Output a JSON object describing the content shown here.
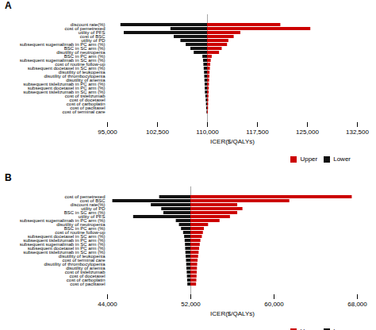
{
  "chart_data": [
    {
      "type": "bar",
      "orientation": "horizontal",
      "title": "A",
      "x_label": "ICER($/QALYs)",
      "base": 110000,
      "xlim": [
        95000,
        132500
      ],
      "xticks": [
        {
          "value": 95000,
          "label": "95,000"
        },
        {
          "value": 102500,
          "label": "102,500"
        },
        {
          "value": 110000,
          "label": "110,000"
        },
        {
          "value": 117500,
          "label": "117,500"
        },
        {
          "value": 125000,
          "label": "125,000"
        },
        {
          "value": 132500,
          "label": "132,500"
        }
      ],
      "categories": [
        "discount rate(%)",
        "cost of pemetrexed",
        "utility of PFS",
        "cost of BSC",
        "utility of PD",
        "subsequent sugemalimab in PC arm (%)",
        "BSC in SC arm (%)",
        "disutility of neutropenia",
        "BSC in PC arm (%)",
        "subsequent sugemalimab in SC arm (%)",
        "cost of routine follow-up",
        "subsequent docetaxel in SC arm (%)",
        "disutility of leukopenia",
        "disutility of thrombocylopenia",
        "disutility of anemia",
        "subsequent tislelizumab in PC arm (%)",
        "subsequent docetaxel in PC arm (%)",
        "subsequent tislelizumab in SC arm (%)",
        "cost of tislelizumab",
        "cost of docetaxel",
        "cost of carboplatin",
        "cost of paclitaxel",
        "cost of terminal care"
      ],
      "series": [
        {
          "name": "Upper",
          "color": "#cc0000",
          "values": [
            121000,
            125500,
            115000,
            114000,
            113200,
            113000,
            112200,
            111800,
            110700,
            110550,
            110480,
            110420,
            110370,
            110340,
            110310,
            110285,
            110265,
            110245,
            110210,
            110185,
            110165,
            110150,
            110105
          ]
        },
        {
          "name": "Lower",
          "color": "#111111",
          "values": [
            97000,
            104500,
            97500,
            105000,
            106000,
            106800,
            107500,
            108000,
            109300,
            109400,
            109450,
            109500,
            109550,
            109580,
            109610,
            109640,
            109660,
            109680,
            109750,
            109800,
            109840,
            109870,
            109920
          ]
        }
      ],
      "legend": "lower right",
      "grid": false
    },
    {
      "type": "bar",
      "orientation": "horizontal",
      "title": "B",
      "x_label": "ICER($/QALYs)",
      "base": 52000,
      "xlim": [
        44000,
        68000
      ],
      "xticks": [
        {
          "value": 44000,
          "label": "44,000"
        },
        {
          "value": 52000,
          "label": "52,000"
        },
        {
          "value": 60000,
          "label": "60,000"
        },
        {
          "value": 68000,
          "label": "68,000"
        }
      ],
      "categories": [
        "cost of pemetrexed",
        "cost of BSC",
        "discount rate(%)",
        "utility of PD",
        "BSC in SC arm (%)",
        "utility of PFS",
        "subsequent sugemalimab in PC arm (%)",
        "disutility of neutropenia",
        "BSC in PC arm (%)",
        "cost of routine follow-up",
        "subsequent docetaxel in SC arm (%)",
        "subsequent tislelizumab in PC arm (%)",
        "subsequent sugemalimab in SC arm (%)",
        "subsequent docetaxel in PC arm (%)",
        "subsequent tislelizumab in SC arm (%)",
        "disutility of leukopenia",
        "cost of terminal care",
        "disutility of thrombocylopenia",
        "disutility of anemia",
        "cost of tislelizumab",
        "cost of docetaxel",
        "cost of carboplatin",
        "cost of paclitaxel"
      ],
      "series": [
        {
          "name": "Upper",
          "color": "#cc0000",
          "values": [
            67500,
            61500,
            56500,
            57000,
            56500,
            55800,
            54800,
            53700,
            53300,
            53200,
            53100,
            52960,
            52900,
            52840,
            52790,
            52740,
            52690,
            52650,
            52630,
            52610,
            52590,
            52570,
            52545
          ]
        },
        {
          "name": "Lower",
          "color": "#111111",
          "values": [
            49000,
            44500,
            48200,
            49200,
            49400,
            46500,
            50600,
            50900,
            51100,
            51300,
            51400,
            51450,
            51480,
            51500,
            51520,
            51550,
            51580,
            51600,
            51620,
            51650,
            51670,
            51690,
            51710
          ]
        }
      ],
      "legend": "lower right",
      "grid": false
    }
  ]
}
